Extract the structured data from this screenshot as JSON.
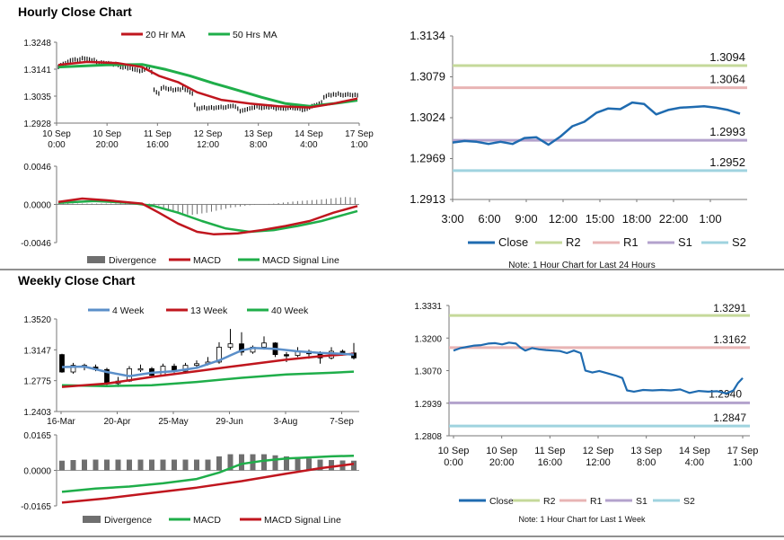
{
  "hourly_title": "Hourly Close Chart",
  "weekly_title": "Weekly Close Chart",
  "colors": {
    "ma_short": "#c0161e",
    "ma_long": "#1fae4a",
    "price": "#000000",
    "close": "#1f6bb0",
    "r2": "#c5d99a",
    "r1": "#e8b4b4",
    "s1": "#b3a2cc",
    "s2": "#9fd3df",
    "divergence": "#6f6f6f",
    "week4": "#5b8fc9"
  },
  "chart_data": [
    {
      "id": "hourly_price",
      "type": "line",
      "title": "Hourly Close Chart",
      "ylim": [
        1.2928,
        1.3248
      ],
      "y_ticks": [
        "1.3248",
        "1.3141",
        "1.3035",
        "1.2928"
      ],
      "x_ticks": [
        [
          "10 Sep",
          "0:00"
        ],
        [
          "10 Sep",
          "20:00"
        ],
        [
          "11 Sep",
          "16:00"
        ],
        [
          "12 Sep",
          "12:00"
        ],
        [
          "13 Sep",
          "8:00"
        ],
        [
          "14 Sep",
          "4:00"
        ],
        [
          "17 Sep",
          "1:00"
        ]
      ],
      "x_count": 126,
      "price": [
        1.315,
        1.3157,
        1.3162,
        1.3165,
        1.317,
        1.3176,
        1.3178,
        1.318,
        1.3176,
        1.318,
        1.3185,
        1.3183,
        1.3182,
        1.318,
        1.3176,
        1.3178,
        1.317,
        1.3165,
        1.3168,
        1.3166,
        1.3164,
        1.3165,
        1.3163,
        1.316,
        1.3162,
        1.3158,
        1.315,
        1.3148,
        1.3151,
        1.3145,
        1.3147,
        1.3142,
        1.314,
        1.3138,
        1.3134,
        1.3136,
        1.314,
        1.3145,
        1.315,
        1.313,
        1.306,
        1.305,
        1.3045,
        1.3065,
        1.307,
        1.3066,
        1.3062,
        1.3064,
        1.3058,
        1.306,
        1.3062,
        1.306,
        1.3068,
        1.306,
        1.3058,
        1.305,
        1.3045,
        1.3,
        1.2985,
        1.2985,
        1.2988,
        1.299,
        1.2986,
        1.2988,
        1.299,
        1.2987,
        1.2989,
        1.299,
        1.2992,
        1.2989,
        1.299,
        1.2994,
        1.2995,
        1.2996,
        1.2993,
        1.2985,
        1.2975,
        1.2978,
        1.298,
        1.2983,
        1.2986,
        1.2988,
        1.299,
        1.2995,
        1.299,
        1.2988,
        1.299,
        1.2992,
        1.299,
        1.2993,
        1.299,
        1.2985,
        1.2988,
        1.2987,
        1.2986,
        1.2985,
        1.2988,
        1.299,
        1.2988,
        1.2986,
        1.2987,
        1.2985,
        1.298,
        1.2982,
        1.2985,
        1.299,
        1.2995,
        1.2998,
        1.3,
        1.3005,
        1.301,
        1.303,
        1.3035,
        1.304,
        1.3038,
        1.3042,
        1.304,
        1.3045,
        1.304,
        1.3038,
        1.304,
        1.3042,
        1.304,
        1.3038,
        1.304,
        1.3038
      ],
      "series": [
        {
          "name": "20 Hr MA",
          "points": [
            [
              0,
              1.3158
            ],
            [
              12,
              1.317
            ],
            [
              25,
              1.3165
            ],
            [
              35,
              1.315
            ],
            [
              42,
              1.3115
            ],
            [
              50,
              1.309
            ],
            [
              58,
              1.305
            ],
            [
              68,
              1.302
            ],
            [
              80,
              1.3005
            ],
            [
              92,
              1.2995
            ],
            [
              105,
              1.299
            ],
            [
              115,
              1.3005
            ],
            [
              125,
              1.3025
            ]
          ]
        },
        {
          "name": "50 Hrs MA",
          "points": [
            [
              0,
              1.315
            ],
            [
              20,
              1.3158
            ],
            [
              35,
              1.316
            ],
            [
              45,
              1.314
            ],
            [
              55,
              1.3115
            ],
            [
              65,
              1.3085
            ],
            [
              75,
              1.3058
            ],
            [
              85,
              1.303
            ],
            [
              95,
              1.3005
            ],
            [
              105,
              1.2995
            ],
            [
              115,
              1.3005
            ],
            [
              125,
              1.3018
            ]
          ]
        }
      ]
    },
    {
      "id": "hourly_macd",
      "type": "bar+line",
      "ylim": [
        -0.0046,
        0.0046
      ],
      "y_ticks": [
        "0.0046",
        "0.0000",
        "-0.0046"
      ],
      "macd": [
        [
          0,
          0.0003
        ],
        [
          10,
          0.0007
        ],
        [
          20,
          0.0005
        ],
        [
          35,
          0.0001
        ],
        [
          42,
          -0.001
        ],
        [
          50,
          -0.0023
        ],
        [
          58,
          -0.0033
        ],
        [
          65,
          -0.0036
        ],
        [
          75,
          -0.0035
        ],
        [
          85,
          -0.0031
        ],
        [
          95,
          -0.0026
        ],
        [
          105,
          -0.002
        ],
        [
          115,
          -0.001
        ],
        [
          125,
          -0.0002
        ]
      ],
      "signal": [
        [
          0,
          0.0002
        ],
        [
          15,
          0.0004
        ],
        [
          30,
          0.0002
        ],
        [
          40,
          -0.0002
        ],
        [
          50,
          -0.001
        ],
        [
          60,
          -0.002
        ],
        [
          70,
          -0.0029
        ],
        [
          80,
          -0.0033
        ],
        [
          90,
          -0.0031
        ],
        [
          100,
          -0.0026
        ],
        [
          110,
          -0.002
        ],
        [
          120,
          -0.0012
        ],
        [
          125,
          -0.0008
        ]
      ],
      "divergence": [
        [
          0,
          0.0001
        ],
        [
          20,
          0.0001
        ],
        [
          40,
          0.0001
        ],
        [
          45,
          -0.0005
        ],
        [
          55,
          -0.0013
        ],
        [
          62,
          -0.001
        ],
        [
          72,
          -0.0004
        ],
        [
          80,
          -0.0001
        ],
        [
          90,
          0.0001
        ],
        [
          100,
          0.0004
        ],
        [
          110,
          0.0006
        ],
        [
          120,
          0.0009
        ],
        [
          125,
          0.0008
        ]
      ]
    },
    {
      "id": "hourly_pivot",
      "type": "line",
      "ylim": [
        1.2913,
        1.3134
      ],
      "y_ticks": [
        "1.3134",
        "1.3079",
        "1.3024",
        "1.2969",
        "1.2913"
      ],
      "x_ticks": [
        "3:00",
        "6:00",
        "9:00",
        "12:00",
        "15:00",
        "18:00",
        "22:00",
        "1:00"
      ],
      "close": [
        1.299,
        1.2992,
        1.2991,
        1.2988,
        1.2991,
        1.2988,
        1.2996,
        1.2997,
        1.2987,
        1.2998,
        1.3012,
        1.3018,
        1.303,
        1.3036,
        1.3035,
        1.3044,
        1.3042,
        1.3028,
        1.3034,
        1.3037,
        1.3038,
        1.3039,
        1.3037,
        1.3034,
        1.3029
      ],
      "levels": [
        {
          "name": "R2",
          "value": "1.3094"
        },
        {
          "name": "R1",
          "value": "1.3064"
        },
        {
          "name": "S1",
          "value": "1.2993"
        },
        {
          "name": "S2",
          "value": "1.2952"
        }
      ],
      "legend": [
        "Close",
        "R2",
        "R1",
        "S1",
        "S2"
      ],
      "note": "Note: 1 Hour Chart for Last 24 Hours"
    },
    {
      "id": "weekly_price",
      "type": "candlestick+line",
      "title": "Weekly Close Chart",
      "ylim": [
        1.2403,
        1.352
      ],
      "y_ticks": [
        "1.3520",
        "1.3147",
        "1.2775",
        "1.2403"
      ],
      "x_ticks": [
        "16-Mar",
        "20-Apr",
        "25-May",
        "29-Jun",
        "3-Aug",
        "7-Sep"
      ],
      "x_count": 27,
      "candles": [
        [
          1.309,
          1.288,
          1.31,
          1.287
        ],
        [
          1.288,
          1.296,
          1.299,
          1.286
        ],
        [
          1.296,
          1.294,
          1.298,
          1.29
        ],
        [
          1.294,
          1.291,
          1.297,
          1.289
        ],
        [
          1.291,
          1.274,
          1.293,
          1.27
        ],
        [
          1.274,
          1.277,
          1.282,
          1.27
        ],
        [
          1.277,
          1.292,
          1.295,
          1.276
        ],
        [
          1.292,
          1.292,
          1.297,
          1.288
        ],
        [
          1.292,
          1.284,
          1.294,
          1.281
        ],
        [
          1.284,
          1.295,
          1.298,
          1.283
        ],
        [
          1.295,
          1.289,
          1.298,
          1.287
        ],
        [
          1.289,
          1.296,
          1.299,
          1.286
        ],
        [
          1.296,
          1.298,
          1.302,
          1.293
        ],
        [
          1.298,
          1.3,
          1.306,
          1.296
        ],
        [
          1.3,
          1.318,
          1.324,
          1.298
        ],
        [
          1.318,
          1.322,
          1.34,
          1.315
        ],
        [
          1.322,
          1.312,
          1.336,
          1.308
        ],
        [
          1.312,
          1.318,
          1.32,
          1.31
        ],
        [
          1.318,
          1.323,
          1.331,
          1.315
        ],
        [
          1.323,
          1.309,
          1.324,
          1.306
        ],
        [
          1.309,
          1.308,
          1.312,
          1.3
        ],
        [
          1.308,
          1.313,
          1.318,
          1.306
        ],
        [
          1.313,
          1.31,
          1.315,
          1.304
        ],
        [
          1.31,
          1.305,
          1.313,
          1.298
        ],
        [
          1.305,
          1.313,
          1.318,
          1.303
        ],
        [
          1.313,
          1.311,
          1.315,
          1.308
        ],
        [
          1.311,
          1.305,
          1.323,
          1.303
        ]
      ],
      "series": [
        {
          "name": "4 Week",
          "points": [
            [
              0,
              1.294
            ],
            [
              2,
              1.2945
            ],
            [
              4,
              1.288
            ],
            [
              6,
              1.283
            ],
            [
              8,
              1.287
            ],
            [
              10,
              1.289
            ],
            [
              12,
              1.293
            ],
            [
              14,
              1.302
            ],
            [
              16,
              1.314
            ],
            [
              17,
              1.317
            ],
            [
              19,
              1.316
            ],
            [
              21,
              1.313
            ],
            [
              23,
              1.311
            ],
            [
              25,
              1.31
            ],
            [
              26,
              1.309
            ]
          ]
        },
        {
          "name": "13 Week",
          "points": [
            [
              0,
              1.27
            ],
            [
              4,
              1.274
            ],
            [
              8,
              1.282
            ],
            [
              12,
              1.289
            ],
            [
              16,
              1.296
            ],
            [
              20,
              1.303
            ],
            [
              23,
              1.307
            ],
            [
              26,
              1.31
            ]
          ]
        },
        {
          "name": "40 Week",
          "points": [
            [
              0,
              1.272
            ],
            [
              4,
              1.271
            ],
            [
              8,
              1.272
            ],
            [
              12,
              1.276
            ],
            [
              16,
              1.281
            ],
            [
              20,
              1.285
            ],
            [
              24,
              1.287
            ],
            [
              26,
              1.2885
            ]
          ]
        }
      ]
    },
    {
      "id": "weekly_macd",
      "type": "bar+line",
      "ylim": [
        -0.0165,
        0.0165
      ],
      "y_ticks": [
        "0.0165",
        "0.0000",
        "-0.0165"
      ],
      "divergence": [
        0.0045,
        0.0048,
        0.005,
        0.005,
        0.005,
        0.005,
        0.005,
        0.005,
        0.005,
        0.005,
        0.005,
        0.005,
        0.005,
        0.005,
        0.0065,
        0.0075,
        0.0075,
        0.0075,
        0.0075,
        0.007,
        0.0065,
        0.006,
        0.0055,
        0.005,
        0.0048,
        0.0046,
        0.0045
      ],
      "macd": [
        [
          0,
          -0.01
        ],
        [
          3,
          -0.0085
        ],
        [
          6,
          -0.0075
        ],
        [
          9,
          -0.006
        ],
        [
          12,
          -0.004
        ],
        [
          14,
          -0.001
        ],
        [
          16,
          0.003
        ],
        [
          18,
          0.0045
        ],
        [
          20,
          0.0055
        ],
        [
          22,
          0.006
        ],
        [
          24,
          0.0065
        ],
        [
          26,
          0.0068
        ]
      ],
      "signal": [
        [
          0,
          -0.015
        ],
        [
          4,
          -0.013
        ],
        [
          8,
          -0.0105
        ],
        [
          12,
          -0.008
        ],
        [
          16,
          -0.005
        ],
        [
          20,
          -0.0015
        ],
        [
          23,
          0.001
        ],
        [
          26,
          0.003
        ]
      ]
    },
    {
      "id": "weekly_pivot",
      "type": "line",
      "ylim": [
        1.2808,
        1.3331
      ],
      "y_ticks": [
        "1.3331",
        "1.3200",
        "1.3070",
        "1.2939",
        "1.2808"
      ],
      "x_ticks": [
        [
          "10 Sep",
          "0:00"
        ],
        [
          "10 Sep",
          "20:00"
        ],
        [
          "11 Sep",
          "16:00"
        ],
        [
          "12 Sep",
          "12:00"
        ],
        [
          "13 Sep",
          "8:00"
        ],
        [
          "14 Sep",
          "4:00"
        ],
        [
          "17 Sep",
          "1:00"
        ]
      ],
      "close": [
        [
          0,
          1.315
        ],
        [
          3,
          1.316
        ],
        [
          6,
          1.3165
        ],
        [
          9,
          1.317
        ],
        [
          12,
          1.3172
        ],
        [
          15,
          1.3178
        ],
        [
          18,
          1.318
        ],
        [
          21,
          1.3175
        ],
        [
          24,
          1.3182
        ],
        [
          27,
          1.3178
        ],
        [
          29,
          1.3162
        ],
        [
          31,
          1.315
        ],
        [
          34,
          1.316
        ],
        [
          37,
          1.3155
        ],
        [
          40,
          1.3152
        ],
        [
          43,
          1.315
        ],
        [
          46,
          1.3148
        ],
        [
          49,
          1.314
        ],
        [
          52,
          1.315
        ],
        [
          55,
          1.314
        ],
        [
          57,
          1.307
        ],
        [
          60,
          1.3062
        ],
        [
          63,
          1.3068
        ],
        [
          66,
          1.306
        ],
        [
          70,
          1.305
        ],
        [
          73,
          1.304
        ],
        [
          75,
          1.299
        ],
        [
          78,
          1.2985
        ],
        [
          82,
          1.2992
        ],
        [
          86,
          1.299
        ],
        [
          90,
          1.2992
        ],
        [
          94,
          1.299
        ],
        [
          98,
          1.2994
        ],
        [
          102,
          1.298
        ],
        [
          106,
          1.2988
        ],
        [
          110,
          1.2985
        ],
        [
          114,
          1.2987
        ],
        [
          118,
          1.2978
        ],
        [
          121,
          1.299
        ],
        [
          123,
          1.302
        ],
        [
          125,
          1.304
        ]
      ],
      "x_count": 126,
      "levels": [
        {
          "name": "R2",
          "value": "1.3291"
        },
        {
          "name": "R1",
          "value": "1.3162"
        },
        {
          "name": "S1",
          "value": "1.2940"
        },
        {
          "name": "S2",
          "value": "1.2847"
        }
      ],
      "legend": [
        "Close",
        "R2",
        "R1",
        "S1",
        "S2"
      ],
      "note": "Note: 1 Hour Chart for Last 1 Week"
    }
  ],
  "legends": {
    "hourly_price": [
      "20 Hr MA",
      "50 Hrs MA"
    ],
    "hourly_macd": [
      "Divergence",
      "MACD",
      "MACD Signal Line"
    ],
    "weekly_price": [
      "4 Week",
      "13 Week",
      "40 Week"
    ],
    "weekly_macd": [
      "Divergence",
      "MACD",
      "MACD Signal Line"
    ]
  }
}
